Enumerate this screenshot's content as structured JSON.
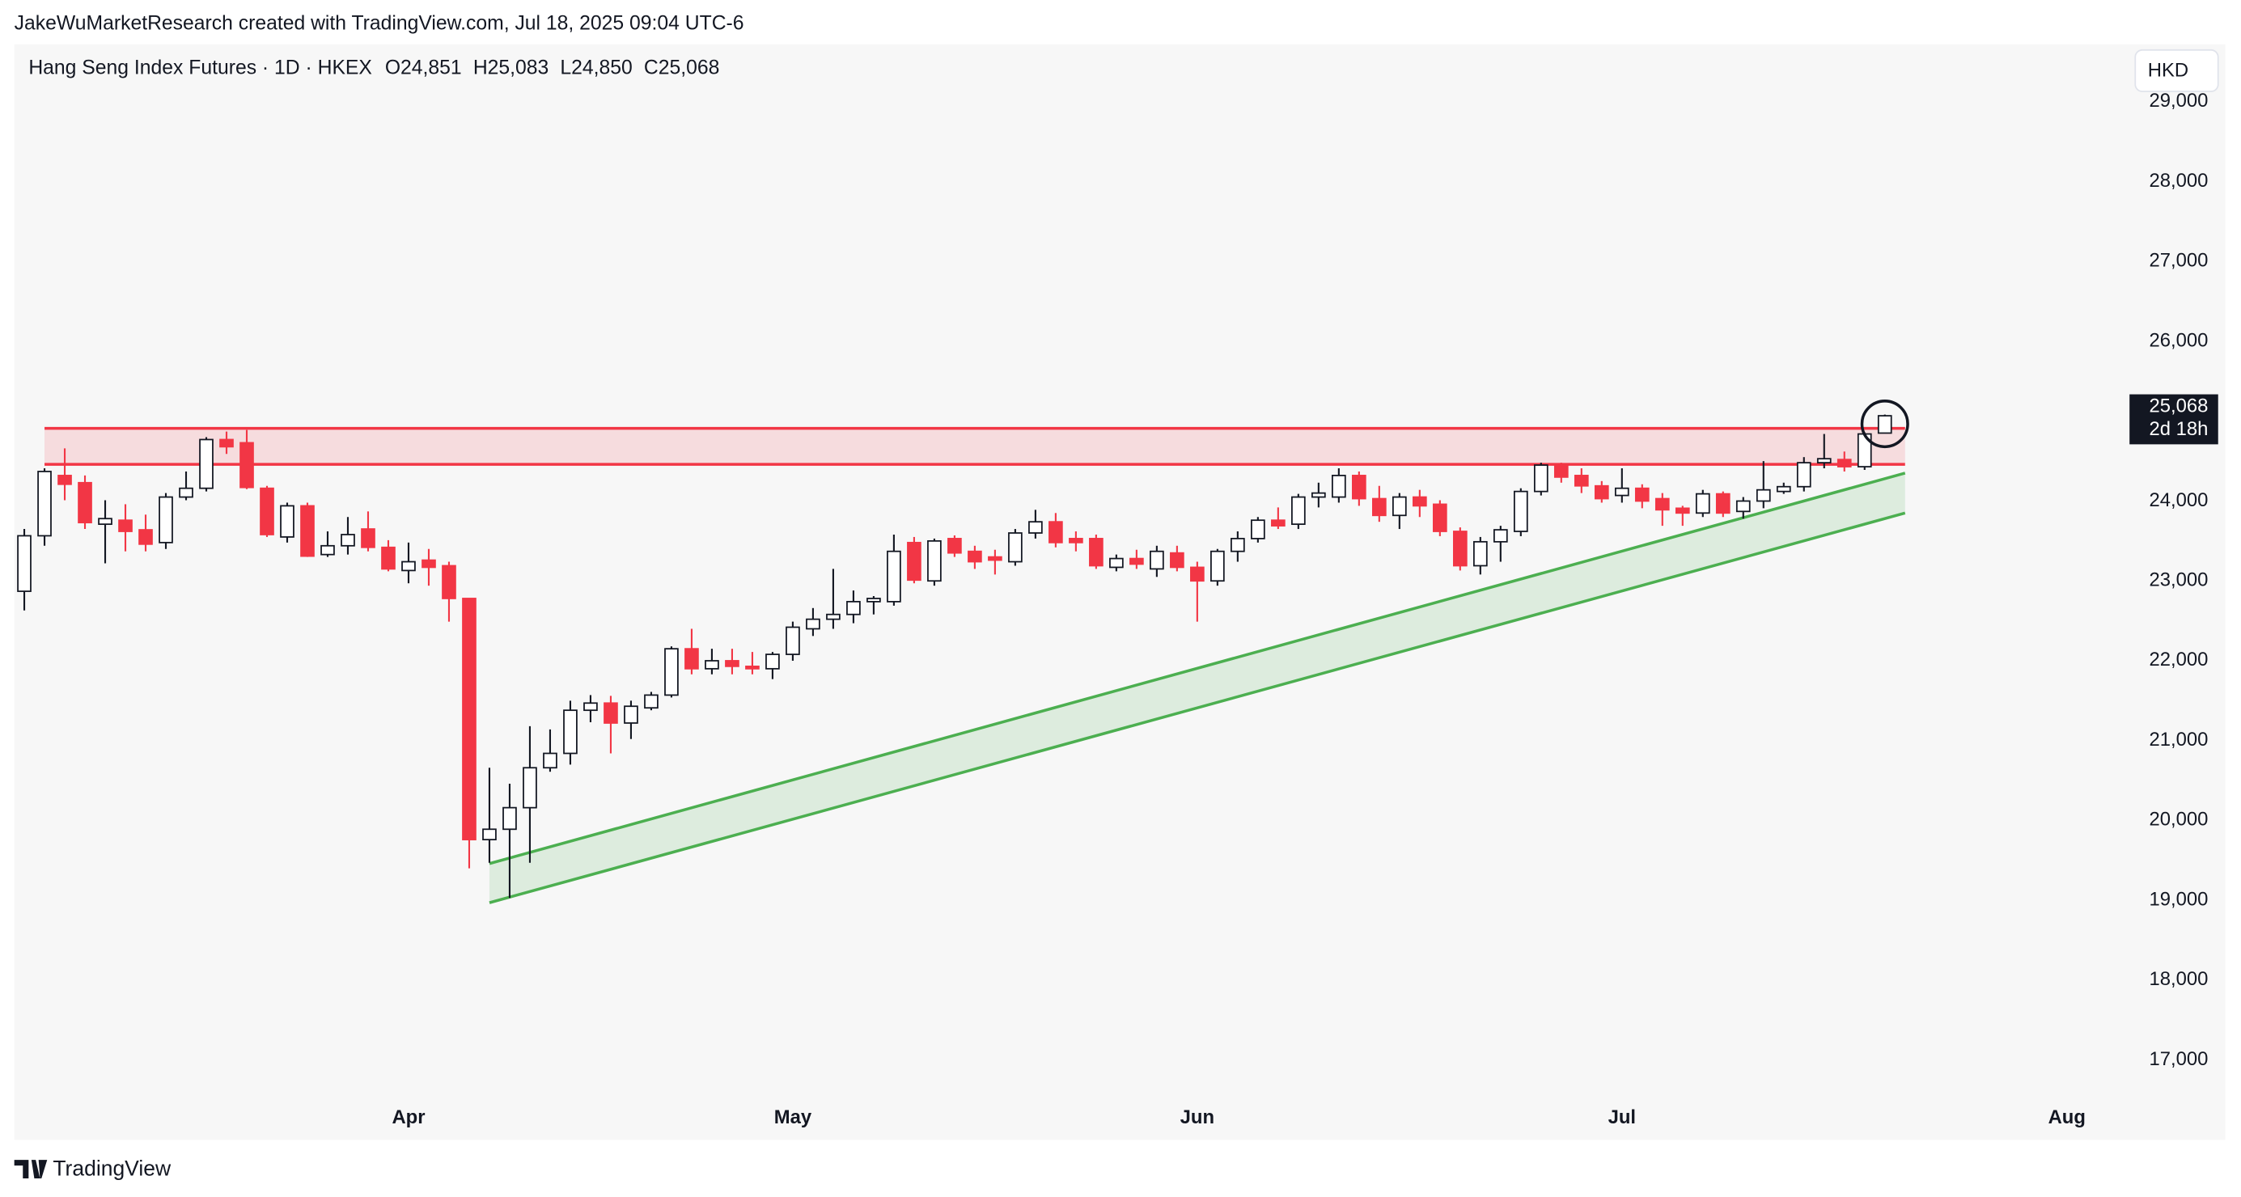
{
  "credit": "JakeWuMarketResearch created with TradingView.com, Jul 18, 2025 09:04 UTC-6",
  "footer_brand": "TradingView",
  "chart_data": {
    "type": "candlestick",
    "title": "Hang Seng Index Futures · 1D · HKEX",
    "ohlc_labels": [
      "O24,851",
      "H25,083",
      "L24,850",
      "C25,068"
    ],
    "currency": "HKD",
    "up_color": "#ffffff",
    "up_border": "#131722",
    "down_color": "#f23645",
    "categories": [
      null,
      null,
      null,
      null,
      null,
      null,
      null,
      null,
      null,
      null,
      null,
      null,
      null,
      null,
      null,
      null,
      null,
      null,
      null,
      "Apr",
      null,
      null,
      null,
      null,
      null,
      null,
      null,
      null,
      null,
      null,
      null,
      null,
      null,
      null,
      null,
      null,
      null,
      null,
      "May",
      null,
      null,
      null,
      null,
      null,
      null,
      null,
      null,
      null,
      null,
      null,
      null,
      null,
      null,
      null,
      null,
      null,
      null,
      null,
      "Jun",
      null,
      null,
      null,
      null,
      null,
      null,
      null,
      null,
      null,
      null,
      null,
      null,
      null,
      null,
      null,
      null,
      null,
      null,
      null,
      null,
      "Jul",
      null,
      null,
      null,
      null,
      null,
      null,
      null,
      null,
      null,
      null,
      null,
      null,
      null,
      null,
      null,
      null,
      null,
      null,
      null,
      null,
      null,
      "Aug",
      null,
      null
    ],
    "open": [
      22870,
      23565,
      24320,
      24230,
      23710,
      23760,
      23640,
      23480,
      24050,
      24160,
      24770,
      24730,
      24160,
      23550,
      23940,
      23330,
      23440,
      23650,
      23420,
      23130,
      23260,
      23190,
      22780,
      19760,
      19890,
      20160,
      20660,
      20840,
      21380,
      21470,
      21220,
      21410,
      21570,
      22150,
      21900,
      22000,
      21930,
      21900,
      22080,
      22400,
      22520,
      22580,
      22740,
      22740,
      23480,
      23000,
      23530,
      23370,
      23300,
      23240,
      23600,
      23740,
      23530,
      23530,
      23170,
      23280,
      23150,
      23350,
      23170,
      23000,
      23370,
      23530,
      23760,
      23710,
      24050,
      24050,
      24320,
      24030,
      23820,
      24050,
      23960,
      23620,
      23190,
      23490,
      23620,
      24120,
      24450,
      24320,
      24190,
      24070,
      24160,
      24030,
      23910,
      23850,
      24090,
      23870,
      24000,
      24120,
      24180,
      24480,
      24520,
      24430,
      24851,
      null,
      null,
      null,
      null,
      null,
      null,
      null,
      null,
      null,
      null,
      null
    ],
    "high": [
      23650,
      24410,
      24660,
      24320,
      24010,
      23960,
      23830,
      24100,
      24370,
      24800,
      24870,
      24890,
      24190,
      23980,
      23980,
      23620,
      23800,
      23870,
      23510,
      23480,
      23400,
      23240,
      22780,
      20660,
      20460,
      21180,
      21140,
      21500,
      21570,
      21560,
      21500,
      21610,
      22180,
      22400,
      22150,
      22150,
      22110,
      22110,
      22490,
      22660,
      23150,
      22880,
      22810,
      23580,
      23550,
      23530,
      23570,
      23440,
      23390,
      23650,
      23890,
      23850,
      23620,
      23580,
      23330,
      23390,
      23440,
      23440,
      23240,
      23400,
      23620,
      23800,
      23920,
      24090,
      24230,
      24410,
      24370,
      24190,
      24100,
      24140,
      24010,
      23670,
      23550,
      23690,
      24160,
      24480,
      24480,
      24410,
      24250,
      24410,
      24210,
      24100,
      23940,
      24140,
      24120,
      24050,
      24500,
      24230,
      24550,
      24840,
      24620,
      24860,
      25083,
      null,
      null,
      null,
      null,
      null,
      null,
      null,
      null,
      null,
      null,
      null
    ],
    "low": [
      22630,
      23440,
      24010,
      23650,
      23220,
      23370,
      23370,
      23400,
      24010,
      24120,
      24590,
      24150,
      23550,
      23480,
      23300,
      23300,
      23330,
      23370,
      23120,
      22970,
      22940,
      22490,
      19400,
      19470,
      19030,
      19470,
      20610,
      20700,
      21230,
      20840,
      21020,
      21380,
      21540,
      21830,
      21830,
      21830,
      21830,
      21770,
      22000,
      22310,
      22400,
      22470,
      22580,
      22690,
      22970,
      22940,
      23300,
      23150,
      23080,
      23190,
      23530,
      23420,
      23370,
      23150,
      23120,
      23150,
      23050,
      23120,
      22490,
      22940,
      23240,
      23480,
      23650,
      23650,
      23920,
      23980,
      23940,
      23740,
      23650,
      23800,
      23560,
      23130,
      23080,
      23240,
      23560,
      24070,
      24230,
      24100,
      23980,
      23980,
      23910,
      23690,
      23690,
      23800,
      23800,
      23780,
      23910,
      24090,
      24120,
      24410,
      24370,
      24390,
      24850,
      null,
      null,
      null,
      null,
      null,
      null,
      null,
      null,
      null,
      null,
      null
    ],
    "close": [
      23565,
      24370,
      24210,
      23730,
      23780,
      23620,
      23460,
      24050,
      24160,
      24770,
      24680,
      24170,
      23580,
      23940,
      23310,
      23440,
      23580,
      23420,
      23150,
      23240,
      23170,
      22780,
      19760,
      19890,
      20160,
      20660,
      20840,
      21380,
      21470,
      21220,
      21430,
      21570,
      22150,
      21900,
      22000,
      21930,
      21900,
      22080,
      22420,
      22520,
      22580,
      22740,
      22780,
      23370,
      23010,
      23500,
      23350,
      23240,
      23260,
      23600,
      23740,
      23480,
      23480,
      23190,
      23280,
      23210,
      23370,
      23170,
      23000,
      23370,
      23530,
      23760,
      23690,
      24050,
      24100,
      24320,
      24030,
      23820,
      24050,
      23940,
      23620,
      23190,
      23490,
      23640,
      24120,
      24450,
      24300,
      24190,
      24030,
      24160,
      24000,
      23890,
      23850,
      24090,
      23850,
      24000,
      24140,
      24180,
      24480,
      24530,
      24430,
      24840,
      25068,
      null,
      null,
      null,
      null,
      null,
      null,
      null,
      null,
      null,
      null,
      null
    ],
    "ylim": [
      16000,
      29720
    ],
    "yticks": [
      {
        "value": 17000,
        "label": "17,000"
      },
      {
        "value": 18000,
        "label": "18,000"
      },
      {
        "value": 19000,
        "label": "19,000"
      },
      {
        "value": 20000,
        "label": "20,000"
      },
      {
        "value": 21000,
        "label": "21,000"
      },
      {
        "value": 22000,
        "label": "22,000"
      },
      {
        "value": 23000,
        "label": "23,000"
      },
      {
        "value": 24000,
        "label": "24,000"
      },
      {
        "value": 25000,
        "label": "25,000"
      },
      {
        "value": 26000,
        "label": "26,000"
      },
      {
        "value": 27000,
        "label": "27,000"
      },
      {
        "value": 28000,
        "label": "28,000"
      },
      {
        "value": 29000,
        "label": "29,000"
      }
    ],
    "grid": false,
    "last_price": {
      "value": 25068,
      "label": "25,068",
      "countdown": "2d 18h"
    },
    "resistance_zone": {
      "x": [
        1,
        93
      ],
      "low": 24460,
      "high": 24910,
      "color": "#f23645"
    },
    "support_channel": {
      "x": [
        23,
        93
      ],
      "upper": [
        19460,
        24350
      ],
      "lower": [
        18970,
        23850
      ],
      "color": "#4caf50"
    }
  }
}
